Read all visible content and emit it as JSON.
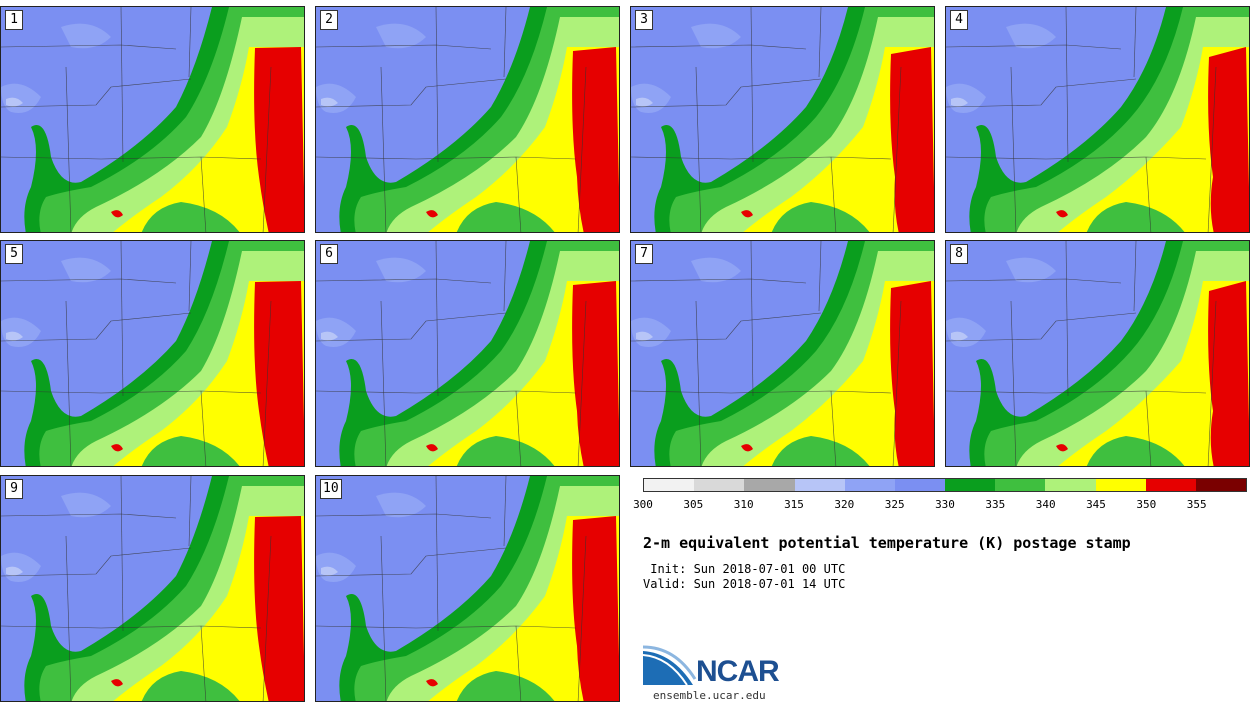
{
  "panels": [
    {
      "label": "1"
    },
    {
      "label": "2"
    },
    {
      "label": "3"
    },
    {
      "label": "4"
    },
    {
      "label": "5"
    },
    {
      "label": "6"
    },
    {
      "label": "7"
    },
    {
      "label": "8"
    },
    {
      "label": "9"
    },
    {
      "label": "10"
    }
  ],
  "colorbar": {
    "ticks": [
      "300",
      "305",
      "310",
      "315",
      "320",
      "325",
      "330",
      "335",
      "340",
      "345",
      "350",
      "355"
    ],
    "colors": [
      "#f2f2f2",
      "#d9d9d9",
      "#a8a8a8",
      "#b7c5f7",
      "#8fa3f5",
      "#7b8ff2",
      "#0a9e1e",
      "#3fbf3f",
      "#aef27a",
      "#ffff00",
      "#e60000",
      "#7a0000"
    ]
  },
  "title": "2-m equivalent potential temperature (K) postage stamp",
  "init": " Init: Sun 2018-07-01 00 UTC",
  "valid": "Valid: Sun 2018-07-01 14 UTC",
  "logo": {
    "text": "NCAR",
    "url": "ensemble.ucar.edu"
  }
}
